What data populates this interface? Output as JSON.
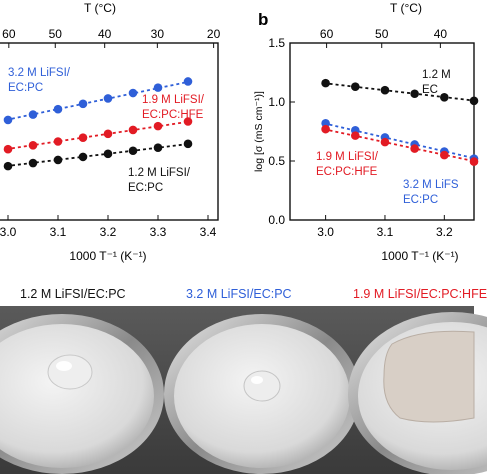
{
  "chart_data": [
    {
      "type": "scatter",
      "panel_label": "",
      "top_axis_label": "T (°C)",
      "top_ticks": [
        60,
        50,
        40,
        30,
        20
      ],
      "xlabel": "1000 T⁻¹ (K⁻¹)",
      "ylabel": "",
      "xlim": [
        2.98,
        3.42
      ],
      "ylim": [
        0.35,
        1.5
      ],
      "x_ticks": [
        3.0,
        3.1,
        3.2,
        3.3,
        3.4
      ],
      "x": [
        3.0,
        3.05,
        3.1,
        3.15,
        3.2,
        3.25,
        3.3,
        3.36
      ],
      "series": [
        {
          "name": "3.2 M LiFSI/ EC:PC",
          "color": "#2f5fd8",
          "values": [
            1.0,
            1.035,
            1.07,
            1.105,
            1.14,
            1.175,
            1.21,
            1.25
          ]
        },
        {
          "name": "1.9 M LiFSI/ EC:PC:HFE",
          "color": "#e21b24",
          "values": [
            0.81,
            0.835,
            0.86,
            0.885,
            0.91,
            0.935,
            0.96,
            0.99
          ]
        },
        {
          "name": "1.2 M LiFSI/ EC:PC",
          "color": "#111111",
          "values": [
            0.7,
            0.72,
            0.74,
            0.76,
            0.78,
            0.8,
            0.82,
            0.845
          ]
        }
      ],
      "legend": [
        {
          "lines": [
            "3.2 M LiFSI/",
            "EC:PC"
          ],
          "color": "#2f5fd8"
        },
        {
          "lines": [
            "1.9 M LiFSI/",
            "EC:PC:HFE"
          ],
          "color": "#e21b24"
        },
        {
          "lines": [
            "1.2 M LiFSI/",
            "EC:PC"
          ],
          "color": "#111111"
        }
      ]
    },
    {
      "type": "scatter",
      "panel_label": "b",
      "top_axis_label": "T (°C)",
      "top_ticks": [
        60,
        50,
        40
      ],
      "xlabel": "1000 T⁻¹ (K⁻¹)",
      "ylabel": "log [σ (mS cm⁻¹)]",
      "xlim": [
        2.94,
        3.25
      ],
      "ylim": [
        0.0,
        1.5
      ],
      "x_ticks": [
        3.0,
        3.1,
        3.2
      ],
      "y_ticks": [
        0.0,
        0.5,
        1.0,
        1.5
      ],
      "x": [
        3.0,
        3.05,
        3.1,
        3.15,
        3.2,
        3.25
      ],
      "series": [
        {
          "name": "1.2 M LiFSI/ EC:PC",
          "color": "#111111",
          "values": [
            1.16,
            1.13,
            1.1,
            1.07,
            1.04,
            1.01
          ]
        },
        {
          "name": "3.2 M LiFSI/ EC:PC",
          "color": "#2f5fd8",
          "values": [
            0.82,
            0.76,
            0.7,
            0.64,
            0.58,
            0.52
          ]
        },
        {
          "name": "1.9 M LiFSI/ EC:PC:HFE",
          "color": "#e21b24",
          "values": [
            0.77,
            0.715,
            0.66,
            0.605,
            0.55,
            0.495
          ]
        }
      ],
      "legend": [
        {
          "lines": [
            "1.2 M",
            "EC"
          ],
          "color": "#111111"
        },
        {
          "lines": [
            "1.9 M LiFSI/",
            "EC:PC:HFE"
          ],
          "color": "#e21b24"
        },
        {
          "lines": [
            "3.2 M LiFS",
            "EC:PC"
          ],
          "color": "#2f5fd8"
        }
      ]
    }
  ],
  "photo_captions": [
    {
      "text": "1.2 M LiFSI/EC:PC",
      "color": "#111111"
    },
    {
      "text": "3.2 M LiFSI/EC:PC",
      "color": "#2f5fd8"
    },
    {
      "text": "1.9 M LiFSI/EC:PC:HFE",
      "color": "#e21b24"
    }
  ]
}
